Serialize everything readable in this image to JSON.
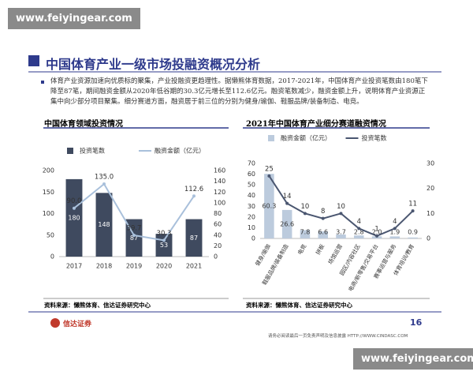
{
  "watermark": [
    "www.feiyingear.com",
    "www.feiyingear.com"
  ],
  "header": {
    "title": "中国体育产业一级市场投融资概况分析",
    "paragraph": "体育产业资源加速向优质标的聚集，产业投融资更趋理性。据懒熊体育数据，2017-2021年，中国体育产业投资笔数由180笔下降至87笔，期间融资金额从2020年低谷期的30.3亿元增长至112.6亿元。融资笔数减少，融资金额上升，说明体育产业资源正集中向少部分项目聚集。细分赛道方面，融资居于前三位的分别为健身/瑜伽、鞋服品牌/装备制造、电竞。"
  },
  "chart_data": [
    {
      "type": "combo",
      "title": "中国体育领域投资情况",
      "source": "资料来源：懒熊体育、信达证券研究中心",
      "categories": [
        "2017",
        "2018",
        "2019",
        "2020",
        "2021"
      ],
      "series": [
        {
          "name": "投资笔数",
          "type": "bar",
          "axis": "y",
          "color": "#3f4a5f",
          "values": [
            180,
            148,
            87,
            53,
            87
          ]
        },
        {
          "name": "融资金额（亿元）",
          "type": "line",
          "axis": "y2",
          "color": "#a9c0db",
          "values": [
            90.0,
            135.0,
            39.7,
            30.3,
            112.6
          ],
          "value_labels": [
            "90.0",
            "135.0",
            "39.7",
            "30.3",
            "112.6"
          ]
        }
      ],
      "ylim": [
        0,
        200
      ],
      "yticks": [
        0,
        50,
        100,
        150,
        200
      ],
      "y2lim": [
        0,
        160
      ],
      "y2ticks": [
        0,
        20,
        40,
        60,
        80,
        100,
        120,
        140,
        160
      ]
    },
    {
      "type": "combo",
      "title": "2021年中国体育产业细分赛道融资情况",
      "source": "资料来源：懒熊体育、信达证券研究中心",
      "categories": [
        "健身/瑜伽",
        "鞋服品牌/装备制造",
        "电竞",
        "拼板",
        "场馆运营",
        "园区/内容社区",
        "电商/新零售/交易平台",
        "赛事运营与服务",
        "体育培训/教育"
      ],
      "series": [
        {
          "name": "融资金额（亿元）",
          "type": "bar",
          "axis": "y",
          "color": "#bccbdd",
          "values": [
            60.3,
            26.6,
            7.8,
            6.6,
            3.7,
            2.8,
            2.0,
            1.9,
            0.9
          ],
          "value_labels": [
            "60.3",
            "26.6",
            "7.8",
            "6.6",
            "3.7",
            "2.8",
            "2.0",
            "1.9",
            "0.9"
          ]
        },
        {
          "name": "投资笔数",
          "type": "line",
          "axis": "y2",
          "color": "#4a5670",
          "values": [
            25,
            14,
            10,
            8,
            10,
            4,
            1,
            4,
            11
          ]
        }
      ],
      "ylim": [
        0,
        70
      ],
      "yticks": [
        0,
        10,
        20,
        30,
        40,
        50,
        60,
        70
      ],
      "y2lim": [
        0,
        30
      ],
      "y2ticks": [
        0,
        10,
        20,
        30
      ]
    }
  ],
  "footer": {
    "logo": "信达证券",
    "page": "16",
    "disclaimer": "请务必阅读最后一页免责声明及信息披露 HTTP://WWW.CINDASC.COM"
  }
}
